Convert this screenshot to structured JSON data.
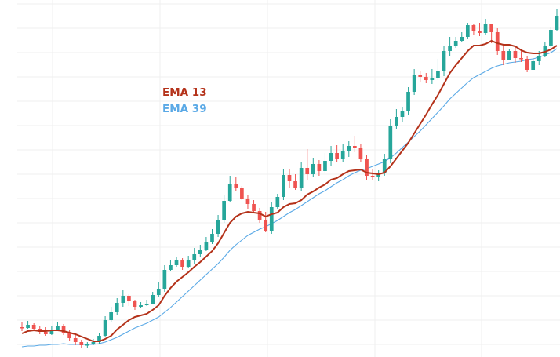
{
  "chart_data": {
    "type": "candlestick",
    "grid": true,
    "legend_placement": "top-left",
    "legend": [
      {
        "label": "EMA 13",
        "color": "#b4321a"
      },
      {
        "label": "EMA 39",
        "color": "#5aa9e6"
      }
    ],
    "colors": {
      "up": "#26a69a",
      "down": "#ef5350",
      "grid": "#efefef"
    },
    "y_range": [
      0,
      460
    ],
    "candles": [
      [
        31,
        30,
        37,
        26
      ],
      [
        30,
        34,
        39,
        29
      ],
      [
        34,
        29,
        36,
        27
      ],
      [
        29,
        25,
        32,
        22
      ],
      [
        25,
        22,
        31,
        20
      ],
      [
        22,
        27,
        32,
        21
      ],
      [
        27,
        32,
        38,
        26
      ],
      [
        32,
        23,
        35,
        21
      ],
      [
        23,
        17,
        28,
        14
      ],
      [
        17,
        12,
        21,
        8
      ],
      [
        12,
        8,
        15,
        4
      ],
      [
        8,
        9,
        12,
        5
      ],
      [
        9,
        12,
        16,
        8
      ],
      [
        12,
        20,
        24,
        10
      ],
      [
        20,
        40,
        45,
        18
      ],
      [
        40,
        50,
        57,
        37
      ],
      [
        50,
        62,
        68,
        47
      ],
      [
        62,
        71,
        78,
        57
      ],
      [
        71,
        64,
        73,
        58
      ],
      [
        64,
        57,
        66,
        53
      ],
      [
        57,
        59,
        63,
        55
      ],
      [
        59,
        61,
        66,
        58
      ],
      [
        61,
        72,
        76,
        60
      ],
      [
        72,
        80,
        89,
        70
      ],
      [
        80,
        104,
        110,
        76
      ],
      [
        104,
        110,
        117,
        102
      ],
      [
        110,
        116,
        120,
        108
      ],
      [
        116,
        108,
        119,
        104
      ],
      [
        108,
        116,
        122,
        106
      ],
      [
        116,
        124,
        132,
        111
      ],
      [
        124,
        130,
        136,
        121
      ],
      [
        130,
        140,
        146,
        128
      ],
      [
        140,
        150,
        156,
        137
      ],
      [
        150,
        168,
        174,
        146
      ],
      [
        168,
        192,
        200,
        164
      ],
      [
        192,
        214,
        224,
        190
      ],
      [
        214,
        208,
        223,
        204
      ],
      [
        208,
        195,
        211,
        193
      ],
      [
        195,
        188,
        200,
        182
      ],
      [
        188,
        179,
        193,
        176
      ],
      [
        179,
        168,
        183,
        164
      ],
      [
        168,
        154,
        178,
        152
      ],
      [
        154,
        184,
        191,
        150
      ],
      [
        184,
        197,
        201,
        182
      ],
      [
        197,
        225,
        232,
        193
      ],
      [
        225,
        217,
        233,
        208
      ],
      [
        217,
        209,
        226,
        206
      ],
      [
        209,
        234,
        242,
        205
      ],
      [
        234,
        226,
        258,
        218
      ],
      [
        226,
        239,
        246,
        222
      ],
      [
        239,
        230,
        244,
        224
      ],
      [
        230,
        243,
        253,
        228
      ],
      [
        243,
        253,
        262,
        237
      ],
      [
        253,
        245,
        263,
        242
      ],
      [
        245,
        256,
        265,
        242
      ],
      [
        256,
        262,
        268,
        248
      ],
      [
        262,
        259,
        275,
        254
      ],
      [
        259,
        245,
        265,
        241
      ],
      [
        245,
        224,
        250,
        218
      ],
      [
        224,
        222,
        232,
        218
      ],
      [
        222,
        227,
        231,
        217
      ],
      [
        227,
        245,
        252,
        224
      ],
      [
        245,
        288,
        296,
        240
      ],
      [
        288,
        299,
        309,
        283
      ],
      [
        299,
        307,
        311,
        293
      ],
      [
        307,
        331,
        337,
        302
      ],
      [
        331,
        352,
        360,
        327
      ],
      [
        352,
        350,
        357,
        343
      ],
      [
        350,
        346,
        355,
        342
      ],
      [
        346,
        349,
        360,
        341
      ],
      [
        349,
        358,
        373,
        346
      ],
      [
        358,
        383,
        390,
        351
      ],
      [
        383,
        389,
        401,
        377
      ],
      [
        389,
        396,
        401,
        387
      ],
      [
        396,
        401,
        407,
        394
      ],
      [
        401,
        416,
        419,
        398
      ],
      [
        416,
        409,
        418,
        403
      ],
      [
        409,
        406,
        419,
        402
      ],
      [
        406,
        418,
        424,
        404
      ],
      [
        418,
        407,
        416,
        393
      ],
      [
        407,
        383,
        412,
        378
      ],
      [
        383,
        371,
        392,
        365
      ],
      [
        371,
        383,
        386,
        376
      ],
      [
        383,
        374,
        388,
        368
      ],
      [
        374,
        373,
        386,
        369
      ],
      [
        373,
        359,
        376,
        356
      ],
      [
        359,
        370,
        373,
        359
      ],
      [
        370,
        377,
        383,
        365
      ],
      [
        377,
        389,
        394,
        375
      ],
      [
        389,
        410,
        414,
        382
      ],
      [
        410,
        427,
        437,
        408
      ]
    ],
    "ema13": [
      23,
      26,
      27,
      26,
      26,
      27,
      27,
      26,
      24,
      22,
      19,
      16,
      13,
      13,
      16,
      20,
      28,
      34,
      40,
      44,
      46,
      48,
      53,
      59,
      71,
      81,
      89,
      95,
      101,
      108,
      114,
      121,
      128,
      138,
      151,
      164,
      172,
      176,
      178,
      177,
      176,
      172,
      175,
      177,
      184,
      188,
      189,
      193,
      200,
      204,
      209,
      213,
      219,
      221,
      226,
      230,
      231,
      232,
      228,
      227,
      226,
      228,
      236,
      246,
      256,
      266,
      278,
      290,
      302,
      315,
      327,
      341,
      355,
      365,
      374,
      383,
      390,
      390,
      392,
      396,
      393,
      391,
      391,
      389,
      384,
      381,
      380,
      380,
      382,
      385,
      390
    ],
    "ema39": [
      6,
      7,
      7,
      8,
      8,
      9,
      9,
      10,
      9,
      9,
      9,
      9,
      9,
      10,
      12,
      15,
      18,
      22,
      26,
      30,
      33,
      36,
      40,
      44,
      50,
      56,
      63,
      70,
      77,
      84,
      91,
      98,
      105,
      112,
      120,
      129,
      136,
      142,
      148,
      152,
      156,
      159,
      163,
      167,
      172,
      177,
      181,
      186,
      191,
      196,
      201,
      205,
      210,
      215,
      219,
      224,
      228,
      231,
      233,
      236,
      239,
      242,
      247,
      253,
      260,
      267,
      274,
      281,
      289,
      297,
      305,
      313,
      322,
      329,
      336,
      343,
      349,
      353,
      357,
      361,
      364,
      366,
      368,
      369,
      370,
      372,
      373,
      375,
      378,
      381,
      386
    ]
  }
}
